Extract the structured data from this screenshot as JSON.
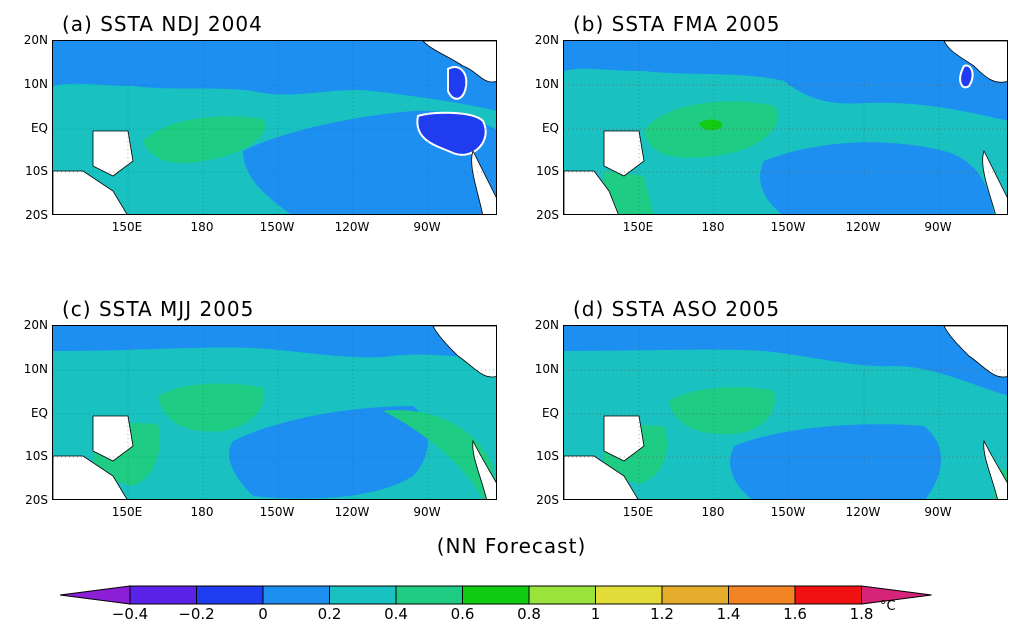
{
  "panels": [
    {
      "title": "(a) SSTA NDJ 2004"
    },
    {
      "title": "(b) SSTA FMA 2005"
    },
    {
      "title": "(c) SSTA MJJ 2005"
    },
    {
      "title": "(d) SSTA ASO 2005"
    }
  ],
  "lat_labels": [
    "20N",
    "10N",
    "EQ",
    "10S",
    "20S"
  ],
  "lon_labels": [
    "150E",
    "180",
    "150W",
    "120W",
    "90W"
  ],
  "caption": "(NN Forecast)",
  "colorbar": {
    "labels": [
      "-0.4",
      "-0.2",
      "0",
      "0.2",
      "0.4",
      "0.6",
      "0.8",
      "1",
      "1.2",
      "1.4",
      "1.6",
      "1.8"
    ],
    "unit": "°C",
    "colors": [
      "#8a1fd6",
      "#5a22e6",
      "#1f3cf0",
      "#1c8ff0",
      "#19c2c0",
      "#1ecc84",
      "#12cc12",
      "#9ae23c",
      "#e2dc38",
      "#e6ac2c",
      "#f28424",
      "#f01212",
      "#d6247a"
    ]
  },
  "map_colors": {
    "base": "#19c2c0",
    "cool": "#1c8ff0",
    "warm": "#1ecc84",
    "warmer": "#12cc12",
    "cold": "#1f3cf0",
    "land": "#ffffff"
  }
}
